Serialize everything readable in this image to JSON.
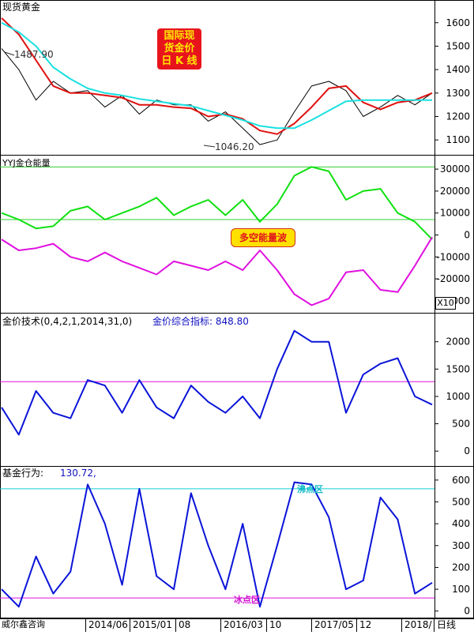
{
  "colors": {
    "price": "#000000",
    "ma_red": "#e01010",
    "ma_cyan": "#19e0e0",
    "green": "#10e010",
    "magenta": "#e010e0",
    "blue": "#0a14d8",
    "guide_green": "#30d030",
    "guide_magenta": "#e010e0",
    "guide_cyan": "#10d0d0",
    "badge_red": "#e8141c",
    "badge_yellow": "#ffe600"
  },
  "panel1": {
    "title": "现货黄金",
    "badge": [
      "国际现",
      "货金价",
      "日 K 线"
    ],
    "high_label": "1487.90",
    "low_label": "1046.20",
    "yticks": [
      "1600",
      "1500",
      "1400",
      "1300",
      "1200",
      "1100"
    ]
  },
  "panel2": {
    "title": "YYJ金仓能量",
    "badge": "多空能量波",
    "scale_label": "X10",
    "yticks": [
      "30000",
      "20000",
      "10000",
      "0",
      "-10000",
      "-20000",
      "-30000"
    ]
  },
  "panel3": {
    "title": "金价技术(0,4,2,1,2014,31,0)",
    "value_label": "金价综合指标: 848.80",
    "yticks": [
      "2000",
      "1500",
      "1000",
      "500",
      "0"
    ]
  },
  "panel4": {
    "title": "基金行为:",
    "value": "130.72,",
    "boil_label": "沸点区",
    "ice_label": "冰点区",
    "yticks": [
      "600",
      "500",
      "400",
      "300",
      "200",
      "100",
      "0"
    ]
  },
  "footer": {
    "source": "威尔鑫咨询",
    "dates": [
      "2014/06",
      "2015/01",
      "08",
      "2016/03",
      "10",
      "2017/05",
      "12",
      "2018/",
      "日线"
    ]
  },
  "chart_data": [
    {
      "type": "line",
      "title": "现货黄金",
      "ylim": [
        1040,
        1680
      ],
      "x": [
        0,
        4,
        8,
        12,
        16,
        20,
        24,
        28,
        32,
        36,
        40,
        44,
        48,
        52,
        56,
        60,
        64,
        68,
        72,
        76,
        80,
        84,
        88,
        92,
        96,
        100
      ],
      "series": [
        {
          "values": [
            1490,
            1400,
            1270,
            1350,
            1300,
            1310,
            1240,
            1290,
            1210,
            1270,
            1250,
            1250,
            1180,
            1220,
            1150,
            1080,
            1100,
            1220,
            1330,
            1350,
            1310,
            1200,
            1240,
            1290,
            1250,
            1300
          ]
        },
        {
          "values": [
            1620,
            1550,
            1440,
            1330,
            1300,
            1300,
            1290,
            1280,
            1250,
            1250,
            1240,
            1235,
            1200,
            1210,
            1190,
            1140,
            1125,
            1170,
            1240,
            1320,
            1330,
            1260,
            1230,
            1260,
            1270,
            1300
          ]
        },
        {
          "values": [
            1600,
            1560,
            1500,
            1410,
            1360,
            1320,
            1300,
            1290,
            1275,
            1265,
            1255,
            1245,
            1225,
            1205,
            1185,
            1160,
            1150,
            1150,
            1185,
            1225,
            1265,
            1270,
            1270,
            1270,
            1270,
            1270
          ]
        }
      ],
      "annotations": [
        "1487.90",
        "1046.20"
      ]
    },
    {
      "type": "line",
      "title": "YYJ金仓能量",
      "ylim": [
        -34000,
        34000
      ],
      "reference_lines": [
        31000,
        7000
      ],
      "x": [
        0,
        4,
        8,
        12,
        16,
        20,
        24,
        28,
        32,
        36,
        40,
        44,
        48,
        52,
        56,
        60,
        64,
        68,
        72,
        76,
        80,
        84,
        88,
        92,
        96,
        100
      ],
      "series": [
        {
          "values": [
            10000,
            7000,
            3000,
            4000,
            11000,
            13000,
            7000,
            10000,
            13000,
            17000,
            9000,
            13000,
            16000,
            9000,
            16000,
            6000,
            14000,
            27000,
            31000,
            29000,
            16000,
            20000,
            21000,
            10000,
            6000,
            -2000
          ]
        },
        {
          "values": [
            -2000,
            -7000,
            -6000,
            -4000,
            -10000,
            -12000,
            -8000,
            -12000,
            -15000,
            -18000,
            -12000,
            -14000,
            -16000,
            -12000,
            -16000,
            -7000,
            -16000,
            -27000,
            -32000,
            -29000,
            -17000,
            -16000,
            -25000,
            -26000,
            -14000,
            -1000
          ]
        }
      ]
    },
    {
      "type": "line",
      "title": "金价技术(0,4,2,1,2014,31,0)",
      "ylim": [
        -200,
        2400
      ],
      "reference_lines": [
        1270
      ],
      "x": [
        0,
        4,
        8,
        12,
        16,
        20,
        24,
        28,
        32,
        36,
        40,
        44,
        48,
        52,
        56,
        60,
        64,
        68,
        72,
        76,
        80,
        84,
        88,
        92,
        96,
        100
      ],
      "series": [
        {
          "name": "金价综合指标",
          "values": [
            800,
            300,
            1100,
            700,
            600,
            1300,
            1200,
            700,
            1300,
            800,
            600,
            1200,
            900,
            700,
            1000,
            600,
            1500,
            2200,
            2000,
            2000,
            700,
            1400,
            1600,
            1700,
            1000,
            850
          ]
        }
      ]
    },
    {
      "type": "line",
      "title": "基金行为",
      "ylim": [
        -30,
        650
      ],
      "reference_lines": [
        560,
        60
      ],
      "x": [
        0,
        4,
        8,
        12,
        16,
        20,
        24,
        28,
        32,
        36,
        40,
        44,
        48,
        52,
        56,
        60,
        64,
        68,
        72,
        76,
        80,
        84,
        88,
        92,
        96,
        100
      ],
      "series": [
        {
          "values": [
            100,
            20,
            250,
            80,
            180,
            580,
            400,
            120,
            560,
            160,
            100,
            540,
            300,
            100,
            400,
            20,
            300,
            590,
            580,
            430,
            100,
            140,
            520,
            420,
            80,
            130
          ]
        }
      ]
    }
  ]
}
